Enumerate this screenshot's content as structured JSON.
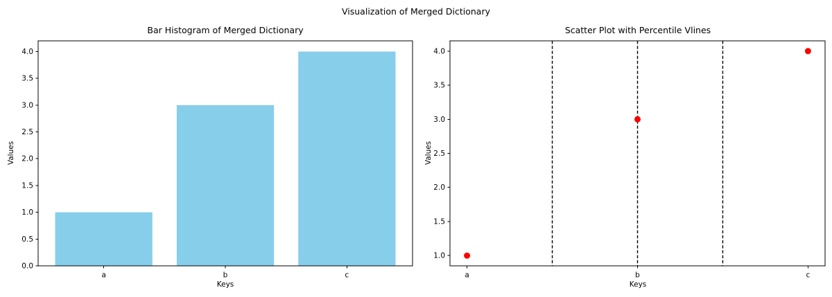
{
  "figure": {
    "suptitle": "Visualization of Merged Dictionary",
    "background_color": "#ffffff",
    "text_color": "#000000"
  },
  "chart_data": [
    {
      "type": "bar",
      "title": "Bar Histogram of Merged Dictionary",
      "xlabel": "Keys",
      "ylabel": "Values",
      "categories": [
        "a",
        "b",
        "c"
      ],
      "values": [
        1,
        3,
        4
      ],
      "yticks": [
        0.0,
        0.5,
        1.0,
        1.5,
        2.0,
        2.5,
        3.0,
        3.5,
        4.0
      ],
      "ylim": [
        0,
        4.2
      ],
      "bar_color": "#87CEEB",
      "bar_width": 0.8,
      "grid": false,
      "legend": null
    },
    {
      "type": "scatter",
      "title": "Scatter Plot with Percentile Vlines",
      "xlabel": "Keys",
      "ylabel": "Values",
      "categories": [
        "a",
        "b",
        "c"
      ],
      "values": [
        1,
        3,
        4
      ],
      "yticks": [
        1.0,
        1.5,
        2.0,
        2.5,
        3.0,
        3.5,
        4.0
      ],
      "ylim": [
        0.85,
        4.15
      ],
      "point_color": "#FF0000",
      "point_radius": 4.5,
      "vlines": {
        "positions": [
          0.5,
          1.0,
          1.5
        ],
        "color": "#000000",
        "style": "dashed"
      },
      "grid": false,
      "legend": null
    }
  ]
}
